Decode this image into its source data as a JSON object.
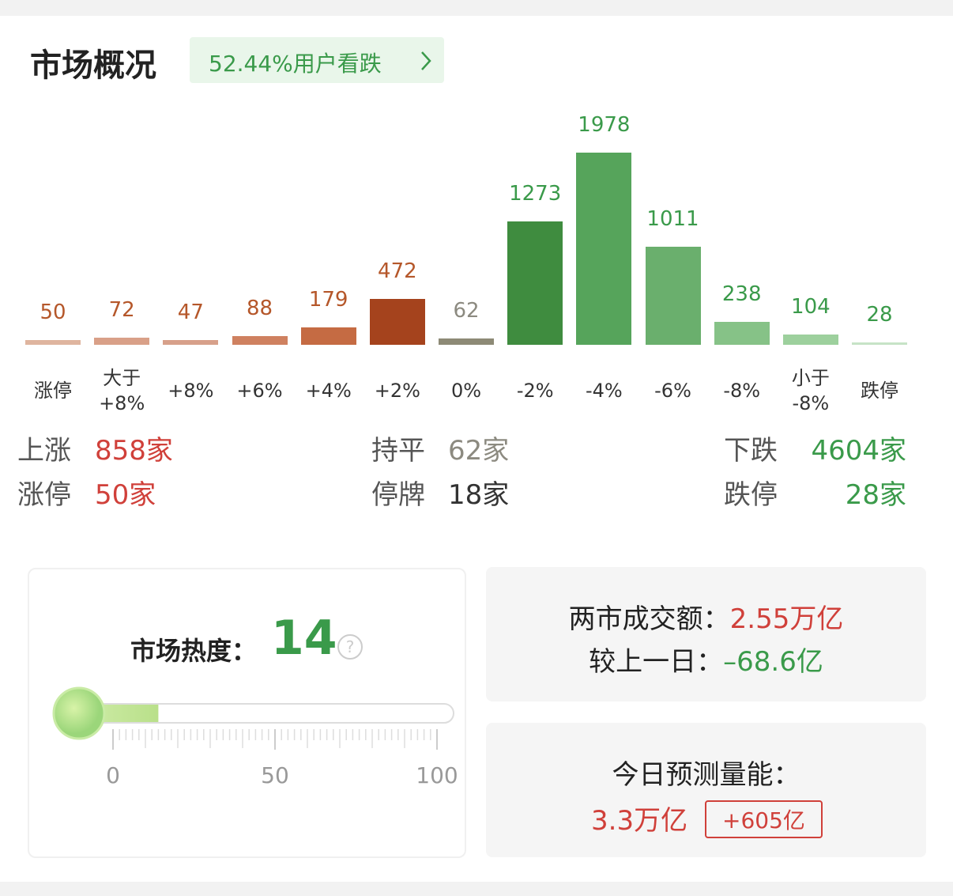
{
  "header": {
    "title": "市场概况",
    "badge": "52.44%用户看跌"
  },
  "chart_data": {
    "type": "bar",
    "categories": [
      "涨停",
      "大于\n+8%",
      "+8%",
      "+6%",
      "+4%",
      "+2%",
      "0%",
      "-2%",
      "-4%",
      "-6%",
      "-8%",
      "小于\n-8%",
      "跌停"
    ],
    "values": [
      50,
      72,
      47,
      88,
      179,
      472,
      62,
      1273,
      1978,
      1011,
      238,
      104,
      28
    ],
    "colors": [
      "#dfb59f",
      "#d9a088",
      "#d7a08a",
      "#cf8160",
      "#c56b43",
      "#a5431d",
      "#8d8a76",
      "#3f8c3f",
      "#56a45b",
      "#6aaf6d",
      "#86c287",
      "#9dd09d",
      "#c6e3c6"
    ],
    "label_colors": [
      "#b5572a",
      "#b5572a",
      "#b5572a",
      "#b5572a",
      "#b5572a",
      "#b5572a",
      "#8c8a80",
      "#3a9a4a",
      "#3a9a4a",
      "#3a9a4a",
      "#3a9a4a",
      "#3a9a4a",
      "#3a9a4a"
    ]
  },
  "summary": {
    "rows": [
      [
        [
          "上涨",
          "858家"
        ],
        [
          "持平",
          "62家"
        ],
        [
          "下跌",
          "4604家"
        ]
      ],
      [
        [
          "涨停",
          "50家"
        ],
        [
          "停牌",
          "18家"
        ],
        [
          "跌停",
          "28家"
        ]
      ]
    ]
  },
  "heat": {
    "label": "市场热度：",
    "value": 14,
    "help_icon": "?",
    "xlim": [
      0,
      100
    ],
    "xticks": [
      0,
      50,
      100
    ]
  },
  "turnover": {
    "label": "两市成交额：",
    "value": "2.55万亿",
    "change_label": "较上一日：",
    "change": "–68.6亿"
  },
  "forecast": {
    "label": "今日预测量能：",
    "value": "3.3万亿",
    "change": "+605亿"
  }
}
